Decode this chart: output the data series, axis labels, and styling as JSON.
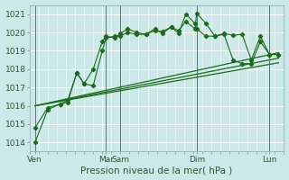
{
  "xlabel": "Pression niveau de la mer( hPa )",
  "bg_color": "#cce8e8",
  "grid_color": "#ffffff",
  "line_color": "#1a6b1a",
  "ylim": [
    1013.5,
    1021.5
  ],
  "yticks": [
    1014,
    1015,
    1016,
    1017,
    1018,
    1019,
    1020,
    1021
  ],
  "xlim": [
    0,
    14
  ],
  "xtick_positions": [
    0.3,
    4.2,
    5.0,
    9.2,
    13.2
  ],
  "xtick_labels": [
    "Ven",
    "Mar",
    "Sam",
    "Dim",
    "Lun"
  ],
  "vline_positions": [
    0.3,
    4.2,
    5.0,
    9.2,
    13.2
  ],
  "series_marker1": {
    "x": [
      0.3,
      1.0,
      1.7,
      2.1,
      2.6,
      3.0,
      3.5,
      4.0,
      4.2,
      4.7,
      5.0,
      5.4,
      5.9,
      6.4,
      6.9,
      7.3,
      7.8,
      8.2,
      8.6,
      9.1,
      9.2,
      9.7,
      10.2,
      10.7,
      11.2,
      11.7,
      12.2,
      12.7,
      13.2,
      13.7
    ],
    "y": [
      1014.0,
      1015.8,
      1016.1,
      1016.3,
      1017.8,
      1017.2,
      1018.0,
      1019.5,
      1019.8,
      1019.7,
      1019.95,
      1020.2,
      1020.0,
      1019.9,
      1020.1,
      1020.05,
      1020.3,
      1020.1,
      1020.6,
      1020.2,
      1021.05,
      1020.5,
      1019.8,
      1019.95,
      1019.85,
      1019.9,
      1018.5,
      1019.8,
      1018.8,
      1018.8
    ]
  },
  "series_marker2": {
    "x": [
      0.3,
      1.0,
      1.7,
      2.1,
      2.6,
      3.0,
      3.5,
      4.0,
      4.2,
      4.7,
      5.0,
      5.4,
      5.9,
      6.4,
      6.9,
      7.3,
      7.8,
      8.2,
      8.6,
      9.1,
      9.2,
      9.7,
      10.2,
      10.7,
      11.2,
      11.7,
      12.2,
      12.7,
      13.2,
      13.7
    ],
    "y": [
      1014.8,
      1015.9,
      1016.1,
      1016.2,
      1017.8,
      1017.2,
      1017.1,
      1019.0,
      1019.7,
      1019.8,
      1019.8,
      1020.0,
      1019.9,
      1019.9,
      1020.2,
      1019.95,
      1020.3,
      1019.95,
      1021.0,
      1020.5,
      1020.2,
      1019.8,
      1019.8,
      1019.9,
      1018.5,
      1018.3,
      1018.3,
      1019.5,
      1018.8,
      1018.8
    ]
  },
  "series_line1": {
    "x": [
      0.3,
      13.7
    ],
    "y": [
      1016.0,
      1018.9
    ]
  },
  "series_line2": {
    "x": [
      0.3,
      13.7
    ],
    "y": [
      1016.0,
      1018.6
    ]
  },
  "series_line3": {
    "x": [
      0.3,
      13.7
    ],
    "y": [
      1016.0,
      1018.35
    ]
  }
}
